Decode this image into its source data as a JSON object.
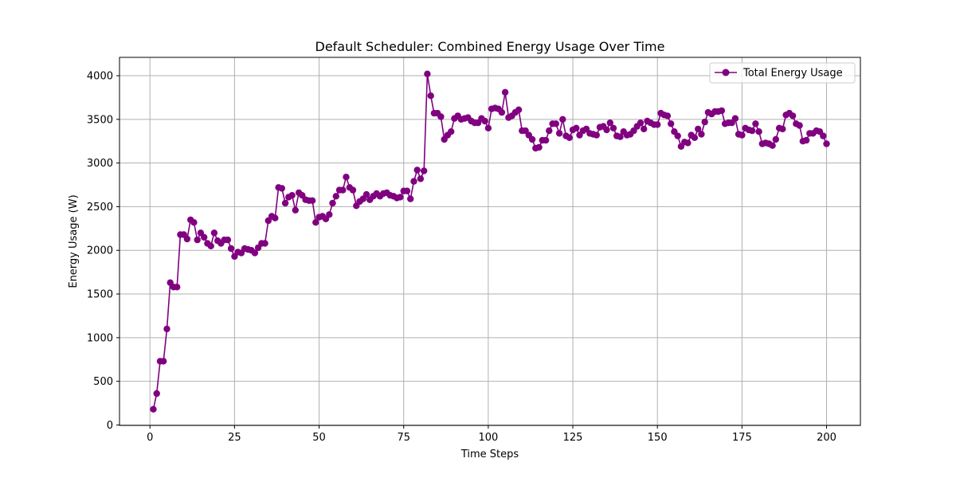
{
  "colors": {
    "series": "#800080",
    "grid": "#b0b0b0",
    "axis": "#000000",
    "legend_border": "#cccccc"
  },
  "chart_data": {
    "type": "line",
    "title": "Default Scheduler: Combined Energy Usage Over Time",
    "xlabel": "Time Steps",
    "ylabel": "Energy Usage (W)",
    "xlim": [
      -9,
      210
    ],
    "ylim": [
      -5,
      4210
    ],
    "xticks": [
      0,
      25,
      50,
      75,
      100,
      125,
      150,
      175,
      200
    ],
    "yticks": [
      0,
      500,
      1000,
      1500,
      2000,
      2500,
      3000,
      3500,
      4000
    ],
    "grid": true,
    "legend_position": "top-right",
    "series": [
      {
        "name": "Total Energy Usage",
        "marker": "circle",
        "x_start": 1,
        "x_step": 1,
        "values": [
          180,
          360,
          730,
          730,
          1100,
          1630,
          1580,
          1580,
          2180,
          2180,
          2130,
          2350,
          2320,
          2120,
          2200,
          2150,
          2080,
          2050,
          2200,
          2110,
          2080,
          2120,
          2120,
          2020,
          1930,
          1980,
          1970,
          2020,
          2010,
          2000,
          1970,
          2030,
          2080,
          2080,
          2340,
          2390,
          2370,
          2720,
          2710,
          2540,
          2610,
          2630,
          2460,
          2660,
          2630,
          2580,
          2570,
          2570,
          2320,
          2380,
          2390,
          2360,
          2410,
          2540,
          2620,
          2690,
          2690,
          2840,
          2720,
          2690,
          2510,
          2560,
          2590,
          2640,
          2580,
          2620,
          2650,
          2620,
          2650,
          2660,
          2630,
          2620,
          2600,
          2610,
          2680,
          2680,
          2590,
          2790,
          2920,
          2820,
          2910,
          4020,
          3770,
          3570,
          3570,
          3530,
          3270,
          3320,
          3360,
          3510,
          3540,
          3500,
          3510,
          3520,
          3480,
          3460,
          3460,
          3510,
          3480,
          3400,
          3620,
          3630,
          3620,
          3580,
          3810,
          3520,
          3540,
          3580,
          3610,
          3370,
          3370,
          3320,
          3270,
          3170,
          3180,
          3260,
          3260,
          3370,
          3450,
          3450,
          3340,
          3500,
          3310,
          3290,
          3380,
          3400,
          3320,
          3370,
          3390,
          3340,
          3330,
          3320,
          3410,
          3420,
          3380,
          3460,
          3400,
          3310,
          3300,
          3360,
          3320,
          3330,
          3370,
          3420,
          3460,
          3390,
          3480,
          3460,
          3440,
          3440,
          3570,
          3550,
          3540,
          3450,
          3360,
          3310,
          3190,
          3240,
          3230,
          3320,
          3290,
          3390,
          3330,
          3470,
          3580,
          3560,
          3590,
          3590,
          3600,
          3450,
          3460,
          3460,
          3510,
          3330,
          3320,
          3400,
          3380,
          3370,
          3450,
          3360,
          3220,
          3230,
          3220,
          3200,
          3270,
          3400,
          3390,
          3550,
          3570,
          3540,
          3450,
          3430,
          3250,
          3260,
          3340,
          3340,
          3370,
          3360,
          3310,
          3220
        ]
      }
    ]
  }
}
